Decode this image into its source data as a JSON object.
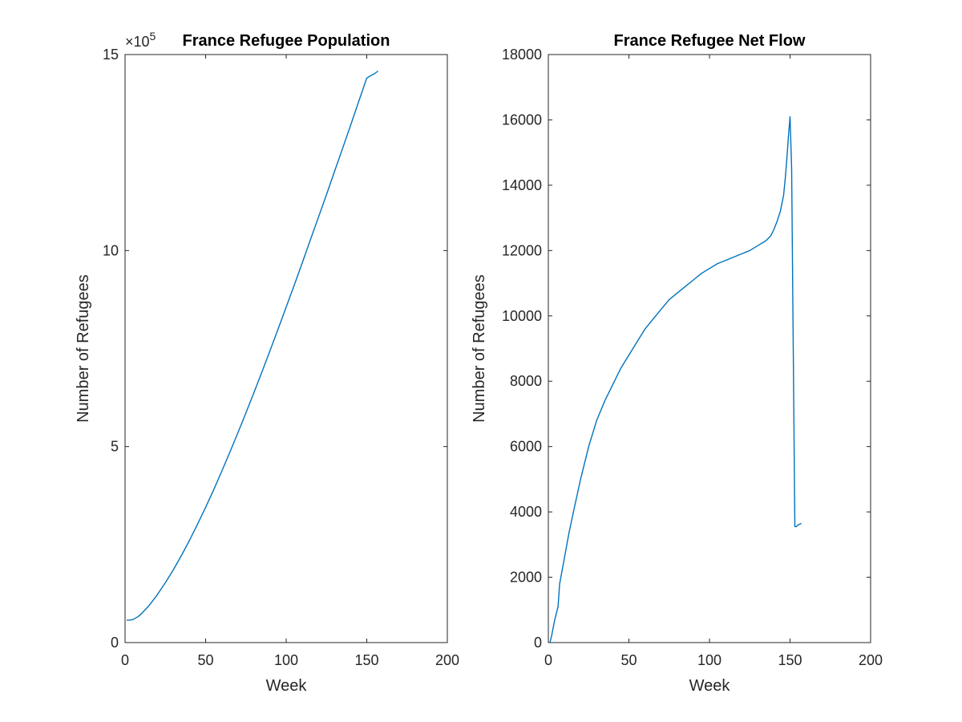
{
  "chart_data": [
    {
      "type": "line",
      "title": "France Refugee Population",
      "xlabel": "Week",
      "ylabel": "Number of Refugees",
      "xlim": [
        0,
        200
      ],
      "ylim": [
        0,
        1500000
      ],
      "xticks": [
        0,
        50,
        100,
        150,
        200
      ],
      "yticks": [
        0,
        500000,
        1000000,
        1500000
      ],
      "ytick_labels": [
        "0",
        "5",
        "10",
        "15"
      ],
      "y_exponent_label": "×10",
      "y_exponent_power": "5",
      "grid": false,
      "line_color": "#0072BD",
      "series": [
        {
          "x": [
            1,
            3,
            5,
            8,
            10,
            15,
            20,
            25,
            30,
            35,
            40,
            45,
            50,
            55,
            60,
            65,
            70,
            75,
            80,
            85,
            90,
            95,
            100,
            105,
            110,
            115,
            120,
            125,
            130,
            135,
            140,
            145,
            148,
            150,
            152,
            155,
            157
          ],
          "y": [
            57000,
            57500,
            59000,
            66000,
            73000,
            95000,
            122000,
            153000,
            186000,
            222000,
            261000,
            302000,
            345000,
            390000,
            437000,
            485000,
            535000,
            586000,
            638000,
            691000,
            745000,
            800000,
            856000,
            912000,
            969000,
            1027000,
            1085000,
            1143000,
            1202000,
            1261000,
            1320000,
            1380000,
            1416000,
            1440000,
            1445000,
            1452000,
            1458000
          ]
        }
      ]
    },
    {
      "type": "line",
      "title": "France Refugee Net Flow",
      "xlabel": "Week",
      "ylabel": "Number of Refugees",
      "xlim": [
        0,
        200
      ],
      "ylim": [
        0,
        18000
      ],
      "xticks": [
        0,
        50,
        100,
        150,
        200
      ],
      "yticks": [
        0,
        2000,
        4000,
        6000,
        8000,
        10000,
        12000,
        14000,
        16000,
        18000
      ],
      "ytick_labels": [
        "0",
        "2000",
        "4000",
        "6000",
        "8000",
        "10000",
        "12000",
        "14000",
        "16000",
        "18000"
      ],
      "grid": false,
      "line_color": "#0072BD",
      "series": [
        {
          "x": [
            1,
            2,
            4,
            6,
            7,
            10,
            13,
            16,
            20,
            25,
            30,
            35,
            40,
            45,
            50,
            55,
            60,
            65,
            70,
            75,
            80,
            85,
            90,
            95,
            100,
            105,
            110,
            115,
            120,
            125,
            130,
            135,
            138,
            140,
            142,
            144,
            146,
            147,
            148,
            149,
            150,
            151,
            152,
            153,
            154,
            155,
            157
          ],
          "y": [
            0,
            200,
            700,
            1100,
            1800,
            2600,
            3400,
            4100,
            5000,
            6000,
            6800,
            7400,
            7900,
            8400,
            8800,
            9200,
            9600,
            9900,
            10200,
            10500,
            10700,
            10900,
            11100,
            11300,
            11450,
            11600,
            11700,
            11800,
            11900,
            12000,
            12150,
            12300,
            12450,
            12650,
            12900,
            13200,
            13700,
            14200,
            14800,
            15500,
            16100,
            14500,
            9000,
            3550,
            3550,
            3600,
            3650
          ]
        }
      ]
    }
  ]
}
